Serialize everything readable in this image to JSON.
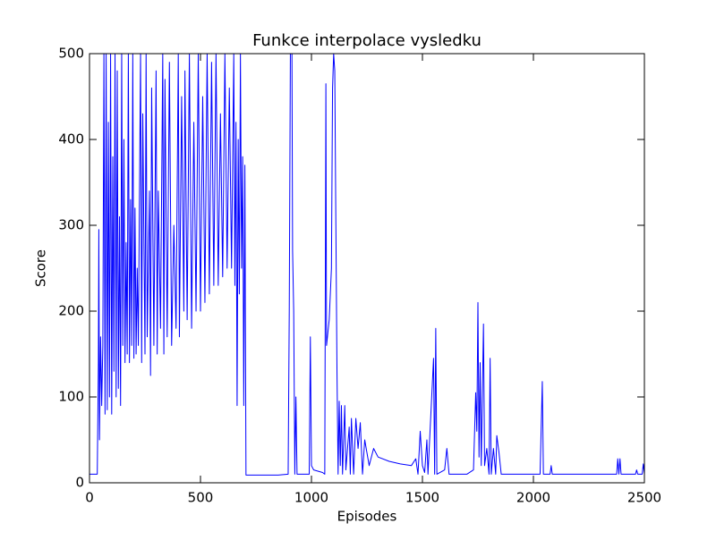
{
  "chart_data": {
    "type": "line",
    "title": "Funkce interpolace vysledku",
    "x_label": "Episodes",
    "y_label": "Score",
    "x": [
      0,
      35,
      40,
      42,
      45,
      50,
      55,
      60,
      65,
      70,
      75,
      80,
      85,
      90,
      95,
      100,
      105,
      110,
      115,
      120,
      125,
      130,
      135,
      140,
      145,
      150,
      155,
      160,
      165,
      170,
      175,
      180,
      185,
      190,
      195,
      200,
      205,
      210,
      215,
      220,
      230,
      235,
      240,
      250,
      255,
      260,
      270,
      275,
      280,
      290,
      300,
      305,
      310,
      320,
      330,
      335,
      340,
      350,
      360,
      370,
      380,
      390,
      400,
      405,
      415,
      425,
      430,
      440,
      450,
      460,
      470,
      480,
      490,
      500,
      510,
      520,
      530,
      540,
      550,
      560,
      570,
      580,
      590,
      600,
      610,
      620,
      630,
      640,
      650,
      655,
      660,
      665,
      670,
      675,
      680,
      685,
      690,
      695,
      700,
      705,
      750,
      800,
      850,
      895,
      900,
      905,
      912,
      915,
      920,
      925,
      930,
      935,
      990,
      995,
      1000,
      1010,
      1050,
      1060,
      1065,
      1068,
      1080,
      1090,
      1095,
      1100,
      1105,
      1110,
      1115,
      1120,
      1125,
      1130,
      1135,
      1140,
      1150,
      1155,
      1170,
      1175,
      1180,
      1190,
      1200,
      1210,
      1220,
      1230,
      1240,
      1260,
      1280,
      1300,
      1350,
      1400,
      1450,
      1470,
      1480,
      1490,
      1500,
      1510,
      1520,
      1525,
      1550,
      1555,
      1560,
      1565,
      1600,
      1610,
      1620,
      1700,
      1730,
      1740,
      1745,
      1750,
      1755,
      1760,
      1765,
      1775,
      1780,
      1790,
      1800,
      1805,
      1810,
      1820,
      1830,
      1835,
      1845,
      1855,
      1950,
      2030,
      2040,
      2045,
      2075,
      2080,
      2085,
      2200,
      2300,
      2375,
      2380,
      2385,
      2390,
      2395,
      2460,
      2465,
      2470,
      2490,
      2495,
      2500
    ],
    "series": [
      {
        "name": "Score",
        "color": "#0000ff",
        "values": [
          10,
          10,
          140,
          295,
          50,
          170,
          90,
          160,
          500,
          80,
          500,
          85,
          420,
          100,
          500,
          80,
          380,
          130,
          500,
          100,
          480,
          110,
          310,
          90,
          500,
          160,
          400,
          140,
          280,
          150,
          500,
          140,
          330,
          160,
          500,
          145,
          320,
          150,
          250,
          160,
          500,
          140,
          430,
          150,
          500,
          170,
          340,
          125,
          460,
          160,
          480,
          150,
          340,
          180,
          500,
          150,
          470,
          170,
          490,
          160,
          300,
          180,
          500,
          170,
          450,
          200,
          480,
          190,
          500,
          180,
          420,
          200,
          500,
          200,
          450,
          210,
          500,
          220,
          490,
          230,
          500,
          230,
          430,
          240,
          500,
          250,
          460,
          250,
          500,
          230,
          420,
          90,
          400,
          220,
          500,
          250,
          380,
          90,
          370,
          9,
          9,
          9,
          9,
          10,
          200,
          500,
          500,
          270,
          200,
          10,
          100,
          10,
          10,
          170,
          20,
          15,
          12,
          10,
          465,
          160,
          190,
          250,
          460,
          500,
          480,
          300,
          130,
          10,
          95,
          20,
          90,
          10,
          90,
          15,
          65,
          10,
          75,
          10,
          75,
          40,
          70,
          10,
          50,
          20,
          40,
          30,
          25,
          22,
          20,
          28,
          10,
          60,
          20,
          12,
          50,
          10,
          145,
          10,
          180,
          10,
          15,
          40,
          10,
          10,
          15,
          105,
          60,
          210,
          30,
          140,
          20,
          185,
          20,
          40,
          10,
          145,
          10,
          40,
          10,
          55,
          35,
          10,
          10,
          10,
          118,
          10,
          10,
          20,
          10,
          10,
          10,
          10,
          28,
          10,
          28,
          10,
          10,
          15,
          10,
          10,
          22,
          10
        ]
      }
    ],
    "xlim": [
      0,
      2500
    ],
    "ylim": [
      0,
      500
    ],
    "xticks": [
      0,
      500,
      1000,
      1500,
      2000,
      2500
    ],
    "yticks": [
      0,
      100,
      200,
      300,
      400,
      500
    ]
  }
}
